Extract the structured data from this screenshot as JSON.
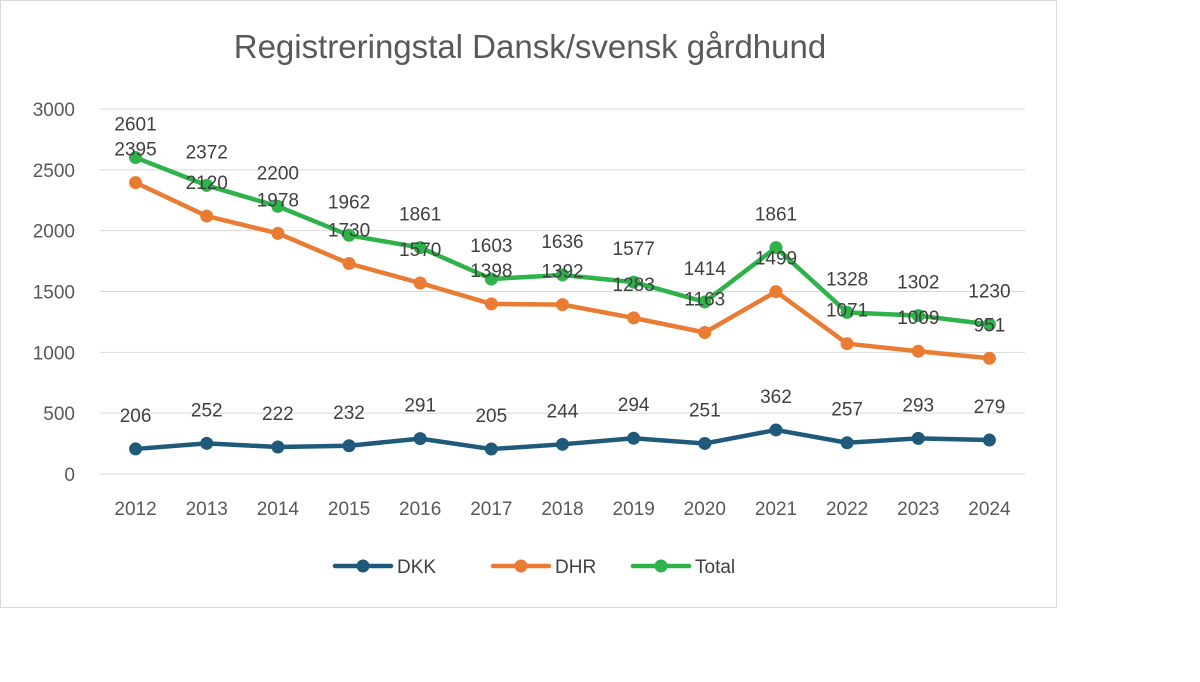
{
  "chart_data": {
    "type": "line",
    "title": "Registreringstal Dansk/svensk gårdhund",
    "xlabel": "",
    "ylabel": "",
    "categories": [
      "2012",
      "2013",
      "2014",
      "2015",
      "2016",
      "2017",
      "2018",
      "2019",
      "2020",
      "2021",
      "2022",
      "2023",
      "2024"
    ],
    "y_ticks": [
      "0",
      "500",
      "1000",
      "1500",
      "2000",
      "2500",
      "3000"
    ],
    "ylim": [
      0,
      3000
    ],
    "grid": true,
    "legend_position": "bottom",
    "series": [
      {
        "name": "DKK",
        "color": "#1f5a7a",
        "values": [
          206,
          252,
          222,
          232,
          291,
          205,
          244,
          294,
          251,
          362,
          257,
          293,
          279
        ],
        "labels": [
          "206",
          "252",
          "222",
          "232",
          "291",
          "205",
          "244",
          "294",
          "251",
          "362",
          "257",
          "293",
          "279"
        ]
      },
      {
        "name": "DHR",
        "color": "#e97b33",
        "values": [
          2395,
          2120,
          1978,
          1730,
          1570,
          1398,
          1392,
          1283,
          1163,
          1499,
          1071,
          1009,
          951
        ],
        "labels": [
          "2395",
          "2120",
          "1978",
          "1730",
          "1570",
          "1398",
          "1392",
          "1283",
          "1163",
          "1499",
          "1071",
          "1009",
          "951"
        ]
      },
      {
        "name": "Total",
        "color": "#2eb24a",
        "values": [
          2601,
          2372,
          2200,
          1962,
          1861,
          1603,
          1636,
          1577,
          1414,
          1861,
          1328,
          1302,
          1230
        ],
        "labels": [
          "2601",
          "2372",
          "2200",
          "1962",
          "1861",
          "1603",
          "1636",
          "1577",
          "1414",
          "1861",
          "1328",
          "1302",
          "1230"
        ]
      }
    ]
  }
}
